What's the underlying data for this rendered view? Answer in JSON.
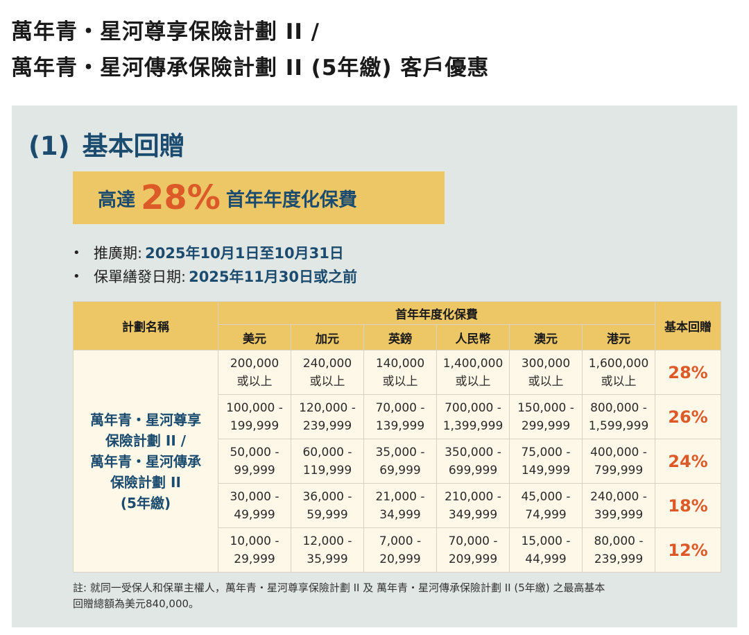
{
  "title": {
    "line1": "萬年青・星河尊享保險計劃 II /",
    "line2": "萬年青・星河傳承保險計劃 II (5年繳) 客戶優惠"
  },
  "section": {
    "number": "(1)",
    "heading": "基本回贈"
  },
  "banner": {
    "prefix": "高達",
    "percent": "28%",
    "suffix": "首年年度化保費"
  },
  "bullets": [
    {
      "label": "推廣期:",
      "value": "2025年10月1日至10月31日"
    },
    {
      "label": "保單繕發日期:",
      "value": "2025年11月30日或之前"
    }
  ],
  "table": {
    "header_plan": "計劃名稱",
    "header_premium": "首年年度化保費",
    "header_rebate": "基本回贈",
    "currencies": [
      "美元",
      "加元",
      "英鎊",
      "人民幣",
      "澳元",
      "港元"
    ],
    "plan_name": [
      "萬年青・星河尊享",
      "保險計劃 II /",
      "萬年青・星河傳承",
      "保險計劃 II",
      "(5年繳)"
    ],
    "rows": [
      {
        "cells": [
          [
            "200,000",
            "或以上"
          ],
          [
            "240,000",
            "或以上"
          ],
          [
            "140,000",
            "或以上"
          ],
          [
            "1,400,000",
            "或以上"
          ],
          [
            "300,000",
            "或以上"
          ],
          [
            "1,600,000",
            "或以上"
          ]
        ],
        "rebate": "28%"
      },
      {
        "cells": [
          [
            "100,000 -",
            "199,999"
          ],
          [
            "120,000 -",
            "239,999"
          ],
          [
            "70,000 -",
            "139,999"
          ],
          [
            "700,000 -",
            "1,399,999"
          ],
          [
            "150,000 -",
            "299,999"
          ],
          [
            "800,000 -",
            "1,599,999"
          ]
        ],
        "rebate": "26%"
      },
      {
        "cells": [
          [
            "50,000 -",
            "99,999"
          ],
          [
            "60,000 -",
            "119,999"
          ],
          [
            "35,000 -",
            "69,999"
          ],
          [
            "350,000 -",
            "699,999"
          ],
          [
            "75,000 -",
            "149,999"
          ],
          [
            "400,000 -",
            "799,999"
          ]
        ],
        "rebate": "24%"
      },
      {
        "cells": [
          [
            "30,000 -",
            "49,999"
          ],
          [
            "36,000 -",
            "59,999"
          ],
          [
            "21,000 -",
            "34,999"
          ],
          [
            "210,000 -",
            "349,999"
          ],
          [
            "45,000 -",
            "74,999"
          ],
          [
            "240,000 -",
            "399,999"
          ]
        ],
        "rebate": "18%"
      },
      {
        "cells": [
          [
            "10,000 -",
            "29,999"
          ],
          [
            "12,000 -",
            "35,999"
          ],
          [
            "7,000 -",
            "20,999"
          ],
          [
            "70,000 -",
            "209,999"
          ],
          [
            "15,000 -",
            "44,999"
          ],
          [
            "80,000 -",
            "239,999"
          ]
        ],
        "rebate": "12%"
      }
    ]
  },
  "note": {
    "line1": "註: 就同一受保人和保單主權人，萬年青・星河尊享保險計劃 II 及 萬年青・星河傳承保險計劃 II (5年繳) 之最高基本",
    "line2": "回贈總額為美元840,000。"
  },
  "colors": {
    "accent_blue": "#1b4b6e",
    "accent_orange": "#dc5a28",
    "gold": "#edc766",
    "panel_bg": "#e0e7e4",
    "cell_bg": "#fdf8e8"
  }
}
